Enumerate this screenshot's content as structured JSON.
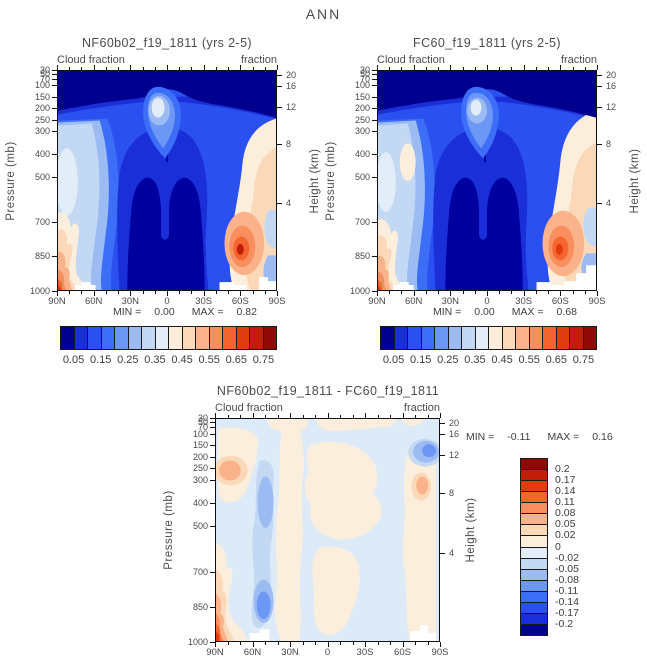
{
  "figure": {
    "title": "ANN"
  },
  "chart_data": {
    "type": "contour",
    "title": "ANN",
    "description": "Annual zonal-mean cloud fraction versus latitude and pressure for two model runs plus their difference",
    "palette16": [
      "#00008F",
      "#1A2FD8",
      "#2A50F0",
      "#3D6EF7",
      "#6D97F5",
      "#9BBBF2",
      "#C3D8F2",
      "#E2EDF8",
      "#FCEEDC",
      "#FBD8B8",
      "#F9B28A",
      "#F98E5E",
      "#F4652F",
      "#E03C10",
      "#C01E08",
      "#8F0A06"
    ],
    "pressure_ticks_mb": [
      30,
      50,
      70,
      100,
      150,
      200,
      250,
      300,
      400,
      500,
      700,
      850,
      1000
    ],
    "height_ticks_km": [
      20,
      16,
      12,
      8,
      4
    ],
    "lat_ticks": [
      "90N",
      "60N",
      "30N",
      "0",
      "30S",
      "60S",
      "90S"
    ],
    "axes": {
      "x": "latitude (90N to 90S)",
      "y_left": "pressure, 30-1000 mb, linear",
      "y_right": "height, km"
    },
    "panels": [
      {
        "id": "top_left",
        "title": "NF60b02_f19_1811 (yrs 2-5)",
        "field_label_left": "Cloud fraction",
        "field_label_right": "fraction",
        "ylabel_left": "Pressure (mb)",
        "ylabel_right": "Height (km)",
        "stats": {
          "min_label": "MIN =",
          "min": "0.00",
          "max_label": "MAX =",
          "max": "0.82"
        },
        "colorbar": {
          "orientation": "horizontal",
          "levels": [
            0.05,
            0.1,
            0.15,
            0.2,
            0.25,
            0.3,
            0.35,
            0.4,
            0.45,
            0.5,
            0.55,
            0.6,
            0.65,
            0.7,
            0.75
          ],
          "labels": [
            "0.05",
            "0.15",
            "0.25",
            "0.35",
            "0.45",
            "0.55",
            "0.65",
            "0.75"
          ]
        },
        "features": "Very low fraction (<0.05) above 150 mb and in subtropical mid-troposphere; relative maximum (~0.35) near 200 mb at the equator; cloud maxima (~0.8) near 60S at 850 mb and near the Arctic surface"
      },
      {
        "id": "top_right",
        "title": "FC60_f19_1811 (yrs 2-5)",
        "field_label_left": "Cloud fraction",
        "field_label_right": "fraction",
        "ylabel_left": "Pressure (mb)",
        "ylabel_right": "Height (km)",
        "stats": {
          "min_label": "MIN =",
          "min": "0.00",
          "max_label": "MAX =",
          "max": "0.68"
        },
        "colorbar": {
          "orientation": "horizontal",
          "levels": [
            0.05,
            0.1,
            0.15,
            0.2,
            0.25,
            0.3,
            0.35,
            0.4,
            0.45,
            0.5,
            0.55,
            0.6,
            0.65,
            0.7,
            0.75
          ],
          "labels": [
            "0.05",
            "0.15",
            "0.25",
            "0.35",
            "0.45",
            "0.55",
            "0.65",
            "0.75"
          ]
        },
        "features": "Same structure as NF60b02 run with slightly weaker maxima (max 0.68): equatorial upper-level maximum, storm-track cloud maximum near 60S 850 mb, cloudy polar boundary layers"
      },
      {
        "id": "diff",
        "title": "NF60b02_f19_1811 - FC60_f19_1811",
        "field_label_left": "Cloud fraction",
        "field_label_right": "fraction",
        "ylabel_left": "Pressure (mb)",
        "ylabel_right": "Height (km)",
        "stats": {
          "min_label": "MIN =",
          "min": "-0.11",
          "max_label": "MAX =",
          "max": "0.16"
        },
        "colorbar": {
          "orientation": "vertical",
          "levels": [
            -0.2,
            -0.17,
            -0.14,
            -0.11,
            -0.08,
            -0.05,
            -0.02,
            0,
            0.02,
            0.05,
            0.08,
            0.11,
            0.14,
            0.17,
            0.2
          ],
          "labels": [
            "0.2",
            "0.17",
            "0.14",
            "0.11",
            "0.08",
            "0.05",
            "0.02",
            "0",
            "-0.02",
            "-0.05",
            "-0.08",
            "-0.11",
            "-0.14",
            "-0.17",
            "-0.2"
          ]
        },
        "features": "Mostly weak differences (|d|<0.02); positive (~+0.16) near the Arctic surface, negative band (~-0.11) near 60N below 500 mb, negative blob near 80S at 150-200 mb, weak positive columns in tropics and near 90S"
      }
    ]
  }
}
